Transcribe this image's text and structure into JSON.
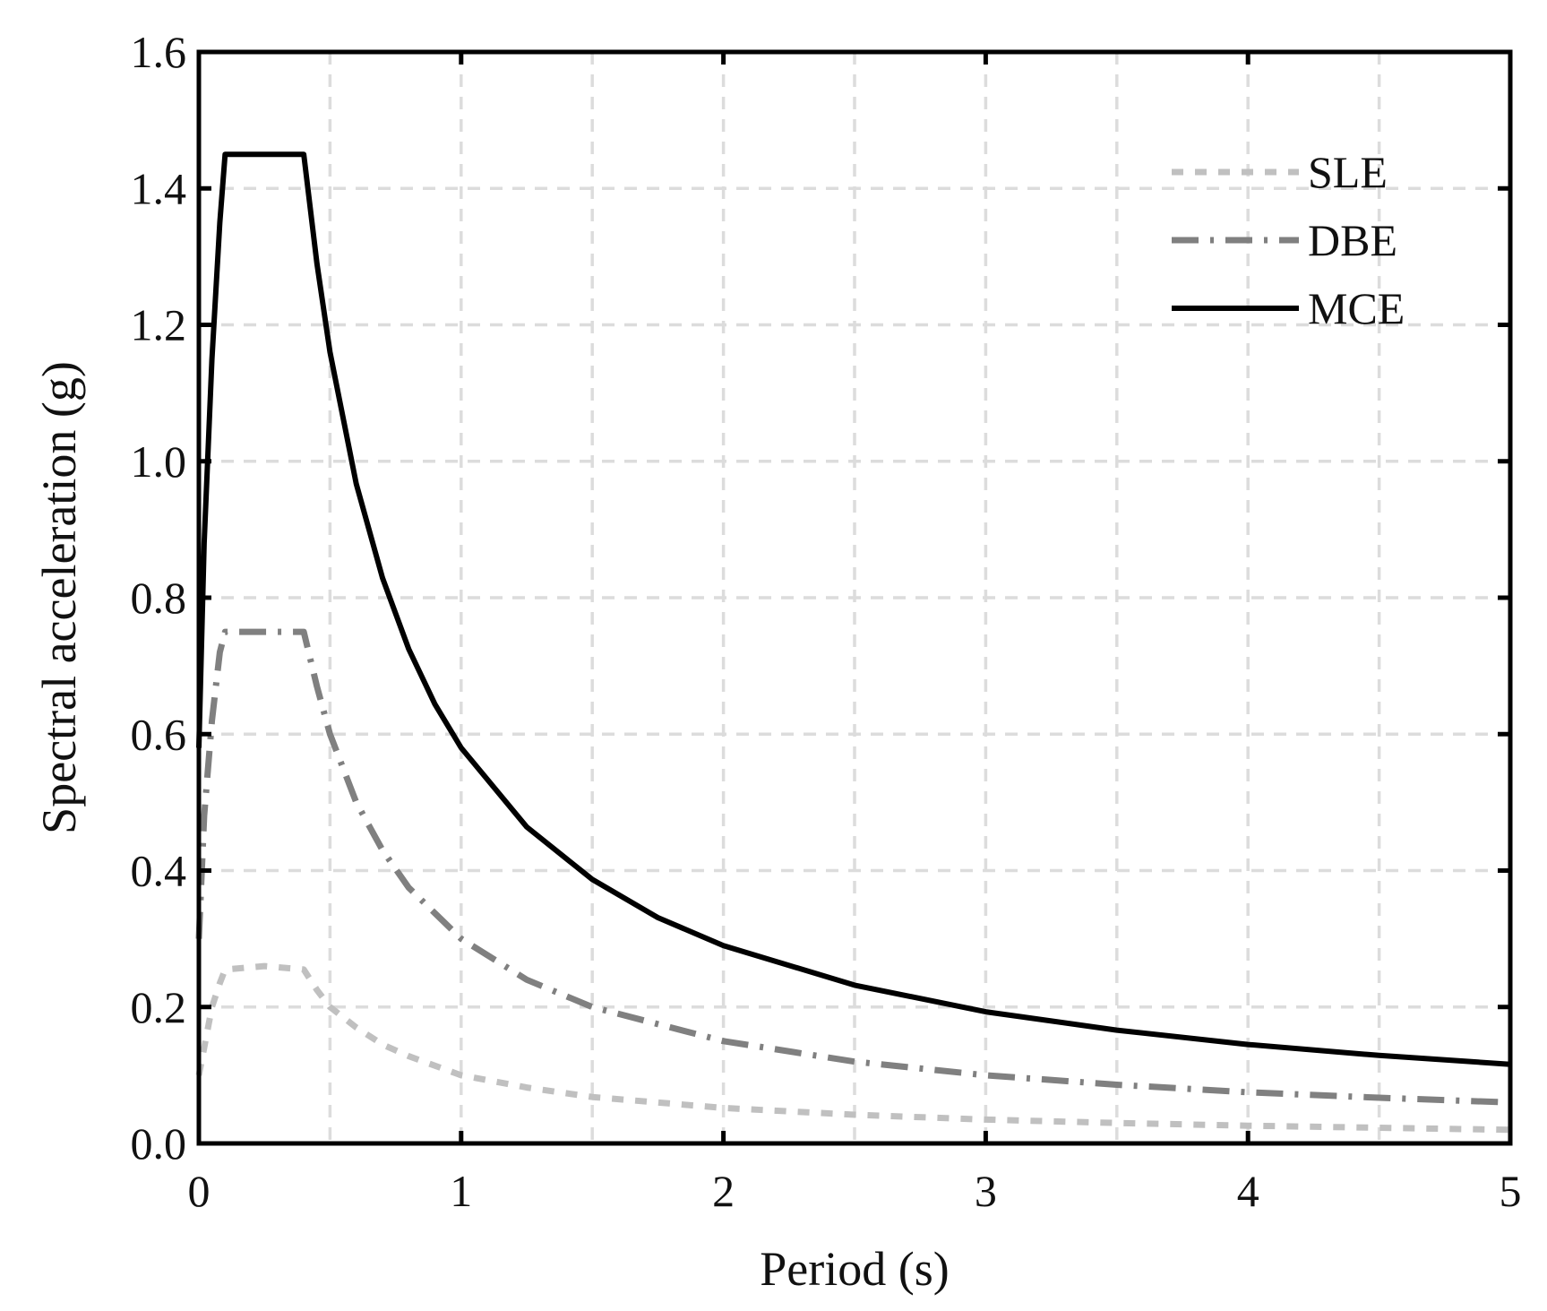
{
  "chart_data": {
    "type": "line",
    "title": "",
    "xlabel": "Period (s)",
    "ylabel": "Spectral acceleration (g)",
    "xlim": [
      0,
      5
    ],
    "ylim": [
      0,
      1.6
    ],
    "xticks": [
      0,
      1,
      2,
      3,
      4,
      5
    ],
    "xtick_labels": [
      "0",
      "1",
      "2",
      "3",
      "4",
      "5"
    ],
    "yticks": [
      0.0,
      0.2,
      0.4,
      0.6,
      0.8,
      1.0,
      1.2,
      1.4,
      1.6
    ],
    "ytick_labels": [
      "0.0",
      "0.2",
      "0.4",
      "0.6",
      "0.8",
      "1.0",
      "1.2",
      "1.4",
      "1.6"
    ],
    "x_gridlines": [
      0.5,
      1,
      1.5,
      2,
      2.5,
      3,
      3.5,
      4,
      4.5
    ],
    "y_gridlines": [
      0.2,
      0.4,
      0.6,
      0.8,
      1.0,
      1.2,
      1.4
    ],
    "grid": true,
    "legend_position": "top-right",
    "series": [
      {
        "name": "SLE",
        "color": "#c0c0c0",
        "style": "dotted",
        "points": [
          [
            0,
            0.1
          ],
          [
            0.02,
            0.14
          ],
          [
            0.05,
            0.2
          ],
          [
            0.08,
            0.235
          ],
          [
            0.1,
            0.255
          ],
          [
            0.25,
            0.26
          ],
          [
            0.4,
            0.255
          ],
          [
            0.45,
            0.225
          ],
          [
            0.5,
            0.2
          ],
          [
            0.6,
            0.17
          ],
          [
            0.7,
            0.145
          ],
          [
            0.8,
            0.128
          ],
          [
            1.0,
            0.1
          ],
          [
            1.25,
            0.082
          ],
          [
            1.5,
            0.068
          ],
          [
            2.0,
            0.052
          ],
          [
            2.5,
            0.042
          ],
          [
            3.0,
            0.035
          ],
          [
            3.5,
            0.03
          ],
          [
            4.0,
            0.026
          ],
          [
            4.5,
            0.023
          ],
          [
            5.0,
            0.02
          ]
        ]
      },
      {
        "name": "DBE",
        "color": "#808080",
        "style": "dashdot",
        "points": [
          [
            0,
            0.3
          ],
          [
            0.02,
            0.48
          ],
          [
            0.05,
            0.62
          ],
          [
            0.08,
            0.72
          ],
          [
            0.1,
            0.75
          ],
          [
            0.25,
            0.75
          ],
          [
            0.4,
            0.75
          ],
          [
            0.45,
            0.67
          ],
          [
            0.5,
            0.6
          ],
          [
            0.6,
            0.5
          ],
          [
            0.7,
            0.43
          ],
          [
            0.8,
            0.375
          ],
          [
            1.0,
            0.3
          ],
          [
            1.25,
            0.24
          ],
          [
            1.5,
            0.2
          ],
          [
            2.0,
            0.15
          ],
          [
            2.5,
            0.12
          ],
          [
            3.0,
            0.1
          ],
          [
            3.5,
            0.086
          ],
          [
            4.0,
            0.075
          ],
          [
            4.5,
            0.067
          ],
          [
            5.0,
            0.06
          ]
        ]
      },
      {
        "name": "MCE",
        "color": "#000000",
        "style": "solid",
        "points": [
          [
            0,
            0.58
          ],
          [
            0.02,
            0.88
          ],
          [
            0.05,
            1.15
          ],
          [
            0.08,
            1.35
          ],
          [
            0.1,
            1.45
          ],
          [
            0.25,
            1.45
          ],
          [
            0.4,
            1.45
          ],
          [
            0.45,
            1.29
          ],
          [
            0.5,
            1.16
          ],
          [
            0.6,
            0.967
          ],
          [
            0.7,
            0.829
          ],
          [
            0.8,
            0.725
          ],
          [
            0.9,
            0.644
          ],
          [
            1.0,
            0.58
          ],
          [
            1.25,
            0.464
          ],
          [
            1.5,
            0.387
          ],
          [
            1.75,
            0.331
          ],
          [
            2.0,
            0.29
          ],
          [
            2.5,
            0.232
          ],
          [
            3.0,
            0.193
          ],
          [
            3.5,
            0.166
          ],
          [
            4.0,
            0.145
          ],
          [
            4.5,
            0.129
          ],
          [
            5.0,
            0.116
          ]
        ]
      }
    ]
  }
}
